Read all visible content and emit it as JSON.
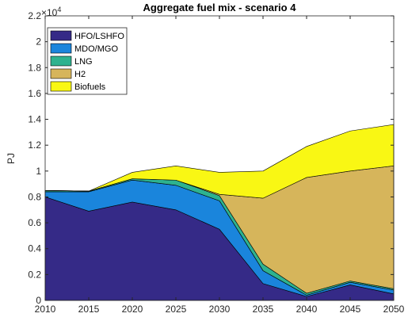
{
  "chart_data": {
    "type": "stacked_area",
    "title": "Aggregate fuel mix - scenario 4",
    "y_label": "PJ",
    "y_multiplier": {
      "base": "×10",
      "exponent": "4"
    },
    "x": [
      2010,
      2015,
      2020,
      2025,
      2030,
      2035,
      2040,
      2045,
      2050
    ],
    "xlim": [
      2010,
      2050
    ],
    "xticks": [
      2010,
      2015,
      2020,
      2025,
      2030,
      2035,
      2040,
      2045,
      2050
    ],
    "ylim": [
      0,
      2.2
    ],
    "yticks": [
      0,
      0.2,
      0.4,
      0.6,
      0.8,
      1,
      1.2,
      1.4,
      1.6,
      1.8,
      2,
      2.2
    ],
    "grid": false,
    "legend_position": "upper-left",
    "series": [
      {
        "name": "HFO/LSHFO",
        "color": "#352a87",
        "values": [
          0.8,
          0.69,
          0.76,
          0.7,
          0.55,
          0.13,
          0.03,
          0.12,
          0.05
        ]
      },
      {
        "name": "MDO/MGO",
        "color": "#1a85dc",
        "values": [
          0.04,
          0.15,
          0.17,
          0.19,
          0.22,
          0.1,
          0.01,
          0.02,
          0.03
        ]
      },
      {
        "name": "LNG",
        "color": "#2eb28f",
        "values": [
          0.01,
          0.005,
          0.01,
          0.04,
          0.04,
          0.05,
          0.015,
          0.01,
          0.01
        ]
      },
      {
        "name": "H2",
        "color": "#d6b55b",
        "values": [
          0,
          0,
          0,
          0,
          0.01,
          0.51,
          0.895,
          0.85,
          0.95
        ]
      },
      {
        "name": "Biofuels",
        "color": "#f9f714",
        "values": [
          0,
          0,
          0.05,
          0.11,
          0.17,
          0.21,
          0.24,
          0.31,
          0.32
        ]
      }
    ]
  }
}
